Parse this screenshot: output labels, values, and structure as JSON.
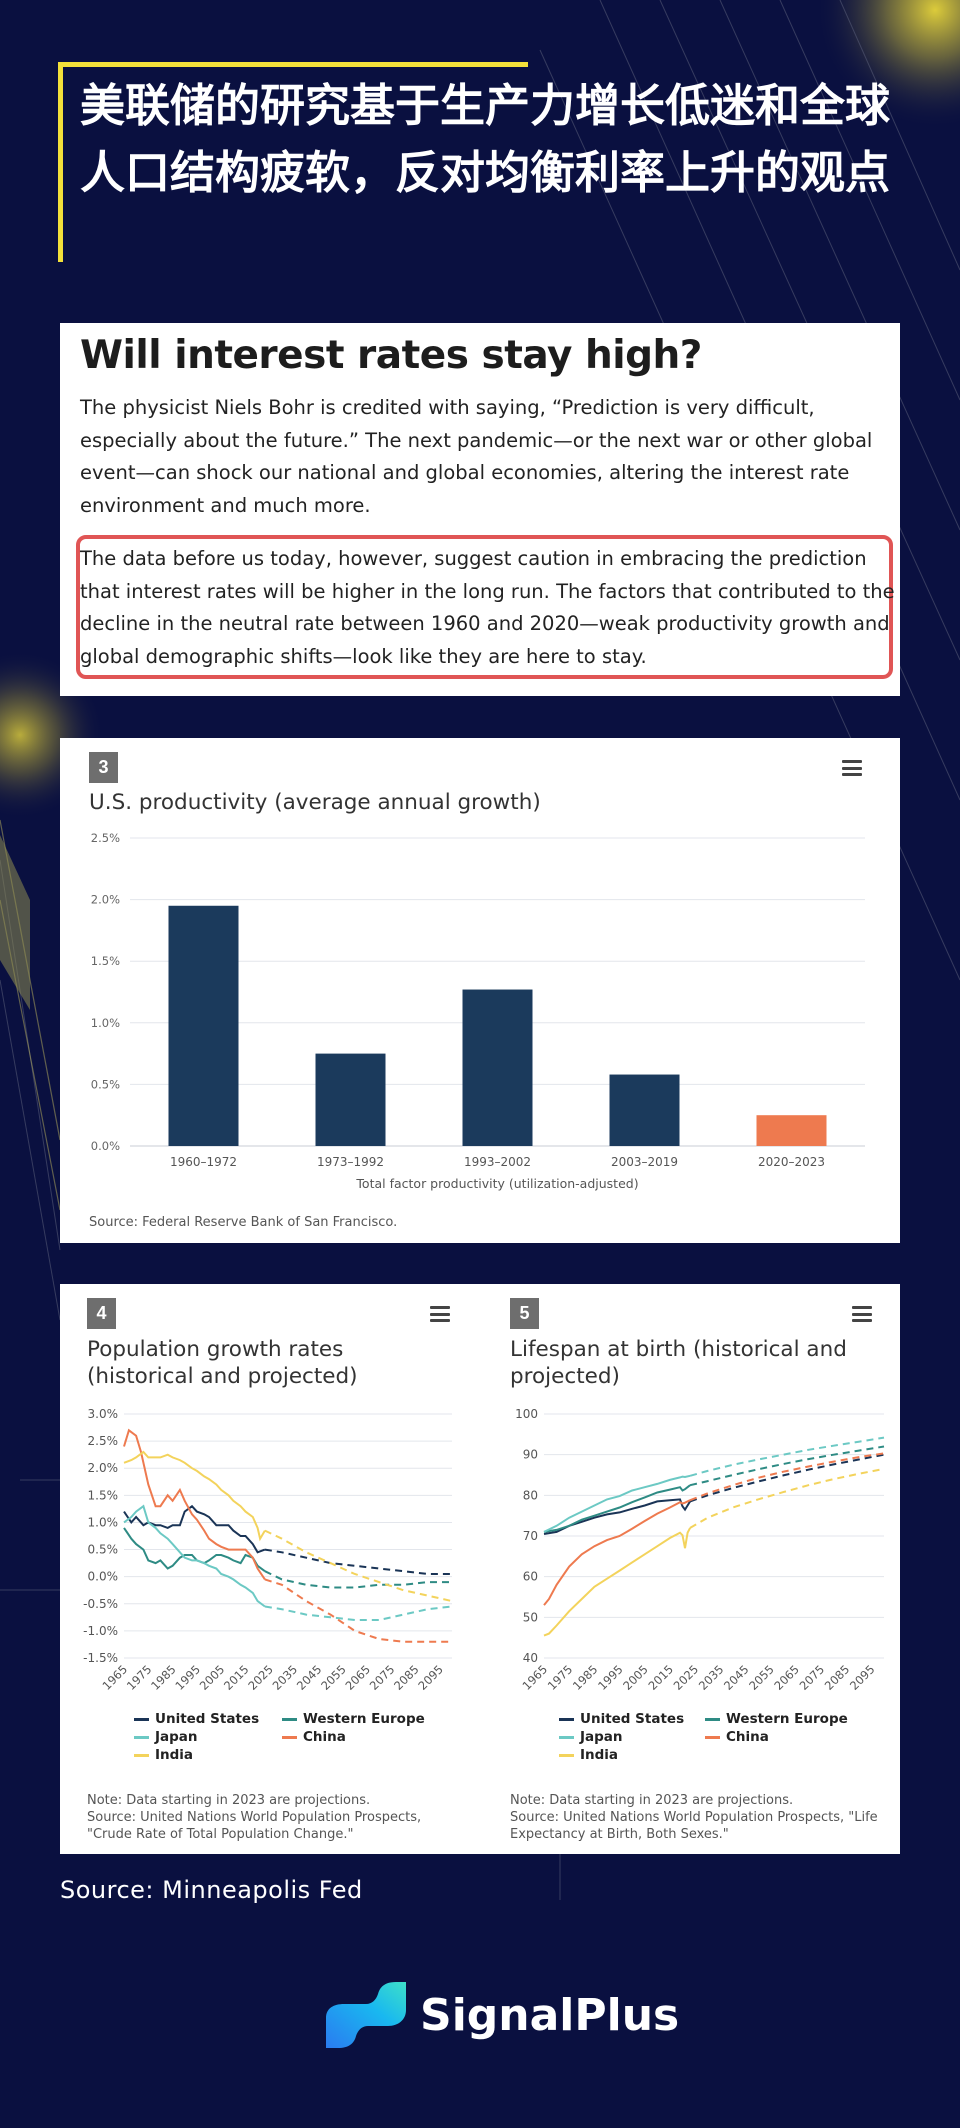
{
  "headline": "美联储的研究基于生产力增长低迷和全球人口结构疲软，反对均衡利率上升的观点",
  "article": {
    "title": "Will interest rates stay high?",
    "paragraph1": "The physicist Niels Bohr is credited with saying, “Prediction is very difficult, especially about the future.” The next pandemic—or the next war or other global event—can shock our national and global economies, altering the interest rate environment and much more.",
    "paragraph2": "The data before us today, however, suggest caution in embracing the prediction that interest rates will be higher in the long run. The factors that contributed to the decline in the neutral rate between 1960 and 2020—weak productivity growth and global demographic shifts—look like they are here to stay."
  },
  "colors": {
    "background": "#0a1040",
    "accent_yellow": "#f3e03a",
    "highlight_red": "#e05555",
    "bar_navy": "#1b3a5c",
    "bar_orange": "#ee7a4f",
    "us": "#1a3456",
    "western_europe": "#2e8b84",
    "japan": "#6cc9c4",
    "china": "#ee7a4f",
    "india": "#f3d35c"
  },
  "chart_data": [
    {
      "badge": "3",
      "type": "bar",
      "title": "U.S. productivity (average annual growth)",
      "categories": [
        "1960–1972",
        "1973–1992",
        "1993–2002",
        "2003–2019",
        "2020–2023"
      ],
      "values": [
        1.95,
        0.75,
        1.27,
        0.58,
        0.25
      ],
      "bar_colors": [
        "#1b3a5c",
        "#1b3a5c",
        "#1b3a5c",
        "#1b3a5c",
        "#ee7a4f"
      ],
      "xlabel": "Total factor productivity (utilization-adjusted)",
      "ylabel": "",
      "ylim": [
        0,
        2.5
      ],
      "yticks": [
        "0.0%",
        "0.5%",
        "1.0%",
        "1.5%",
        "2.0%",
        "2.5%"
      ],
      "source": "Source: Federal Reserve Bank of San Francisco."
    },
    {
      "badge": "4",
      "type": "line",
      "title": "Population growth rates (historical and projected)",
      "ylim": [
        -1.5,
        3.0
      ],
      "yticks": [
        "3.0%",
        "2.5%",
        "2.0%",
        "1.5%",
        "1.0%",
        "0.5%",
        "0.0%",
        "-0.5%",
        "-1.0%",
        "-1.5%"
      ],
      "xticks": [
        "1965",
        "1975",
        "1985",
        "1995",
        "2005",
        "2015",
        "2025",
        "2035",
        "2045",
        "2055",
        "2065",
        "2075",
        "2085",
        "2095"
      ],
      "projection_start": 2023,
      "series": [
        {
          "name": "United States",
          "color": "#1a3456",
          "x": [
            1965,
            1968,
            1970,
            1973,
            1975,
            1978,
            1980,
            1983,
            1985,
            1988,
            1990,
            1993,
            1995,
            1998,
            2000,
            2003,
            2005,
            2008,
            2010,
            2013,
            2015,
            2018,
            2020,
            2023,
            2030,
            2040,
            2050,
            2060,
            2070,
            2080,
            2090,
            2100
          ],
          "y": [
            1.2,
            1.0,
            1.1,
            0.95,
            1.0,
            0.95,
            0.95,
            0.9,
            0.95,
            0.95,
            1.2,
            1.3,
            1.2,
            1.15,
            1.1,
            0.95,
            0.95,
            0.95,
            0.85,
            0.75,
            0.75,
            0.6,
            0.45,
            0.5,
            0.45,
            0.35,
            0.25,
            0.2,
            0.15,
            0.1,
            0.05,
            0.05
          ]
        },
        {
          "name": "Western Europe",
          "color": "#2e8b84",
          "x": [
            1965,
            1968,
            1970,
            1973,
            1975,
            1978,
            1980,
            1983,
            1985,
            1988,
            1990,
            1993,
            1995,
            1998,
            2000,
            2003,
            2005,
            2008,
            2010,
            2013,
            2015,
            2018,
            2020,
            2023,
            2030,
            2040,
            2050,
            2060,
            2070,
            2080,
            2090,
            2100
          ],
          "y": [
            0.9,
            0.7,
            0.6,
            0.5,
            0.3,
            0.25,
            0.3,
            0.15,
            0.2,
            0.35,
            0.4,
            0.4,
            0.3,
            0.25,
            0.3,
            0.4,
            0.4,
            0.35,
            0.3,
            0.25,
            0.4,
            0.35,
            0.2,
            0.1,
            -0.05,
            -0.15,
            -0.2,
            -0.2,
            -0.15,
            -0.15,
            -0.1,
            -0.1
          ]
        },
        {
          "name": "Japan",
          "color": "#6cc9c4",
          "x": [
            1965,
            1968,
            1970,
            1973,
            1975,
            1978,
            1980,
            1983,
            1985,
            1988,
            1990,
            1993,
            1995,
            1998,
            2000,
            2003,
            2005,
            2008,
            2010,
            2013,
            2015,
            2018,
            2020,
            2023,
            2030,
            2040,
            2050,
            2060,
            2070,
            2080,
            2090,
            2100
          ],
          "y": [
            1.0,
            1.1,
            1.2,
            1.3,
            1.0,
            0.9,
            0.8,
            0.7,
            0.6,
            0.45,
            0.35,
            0.3,
            0.3,
            0.25,
            0.2,
            0.15,
            0.05,
            0.0,
            -0.05,
            -0.15,
            -0.2,
            -0.3,
            -0.45,
            -0.55,
            -0.6,
            -0.7,
            -0.75,
            -0.8,
            -0.8,
            -0.7,
            -0.6,
            -0.55
          ]
        },
        {
          "name": "China",
          "color": "#ee7a4f",
          "x": [
            1965,
            1967,
            1970,
            1972,
            1975,
            1978,
            1980,
            1983,
            1985,
            1988,
            1990,
            1993,
            1995,
            1998,
            2000,
            2003,
            2005,
            2008,
            2010,
            2013,
            2015,
            2018,
            2020,
            2023,
            2030,
            2040,
            2050,
            2060,
            2070,
            2080,
            2090,
            2100
          ],
          "y": [
            2.4,
            2.7,
            2.6,
            2.3,
            1.7,
            1.3,
            1.3,
            1.5,
            1.4,
            1.6,
            1.4,
            1.15,
            1.05,
            0.85,
            0.7,
            0.6,
            0.55,
            0.5,
            0.5,
            0.5,
            0.5,
            0.35,
            0.15,
            -0.05,
            -0.15,
            -0.45,
            -0.7,
            -1.0,
            -1.15,
            -1.2,
            -1.2,
            -1.2
          ]
        },
        {
          "name": "India",
          "color": "#f3d35c",
          "x": [
            1965,
            1968,
            1970,
            1973,
            1975,
            1978,
            1980,
            1983,
            1985,
            1988,
            1990,
            1993,
            1995,
            1998,
            2000,
            2003,
            2005,
            2008,
            2010,
            2013,
            2015,
            2018,
            2020,
            2021,
            2023,
            2030,
            2040,
            2050,
            2060,
            2070,
            2080,
            2090,
            2100
          ],
          "y": [
            2.1,
            2.15,
            2.2,
            2.3,
            2.2,
            2.2,
            2.2,
            2.25,
            2.2,
            2.15,
            2.1,
            2.0,
            1.95,
            1.85,
            1.8,
            1.7,
            1.6,
            1.5,
            1.4,
            1.3,
            1.2,
            1.1,
            0.9,
            0.7,
            0.85,
            0.7,
            0.45,
            0.25,
            0.05,
            -0.1,
            -0.25,
            -0.35,
            -0.45
          ]
        }
      ],
      "note": "Note: Data starting in 2023 are projections.",
      "source": "Source: United Nations World Population Prospects, \"Crude Rate of Total Population Change.\""
    },
    {
      "badge": "5",
      "type": "line",
      "title": "Lifespan at birth (historical and projected)",
      "ylim": [
        40,
        100
      ],
      "yticks": [
        "100",
        "90",
        "80",
        "70",
        "60",
        "50",
        "40"
      ],
      "xticks": [
        "1965",
        "1975",
        "1985",
        "1995",
        "2005",
        "2015",
        "2025",
        "2035",
        "2045",
        "2055",
        "2065",
        "2075",
        "2085",
        "2095"
      ],
      "projection_start": 2023,
      "series": [
        {
          "name": "United States",
          "color": "#1a3456",
          "x": [
            1965,
            1970,
            1975,
            1980,
            1985,
            1990,
            1995,
            2000,
            2005,
            2010,
            2015,
            2019,
            2020,
            2021,
            2023,
            2030,
            2040,
            2050,
            2060,
            2070,
            2080,
            2090,
            2100
          ],
          "y": [
            70.5,
            71,
            72.5,
            73.5,
            74.5,
            75.3,
            75.8,
            76.7,
            77.5,
            78.5,
            78.8,
            79,
            77.3,
            76.5,
            78.5,
            80,
            81.8,
            83.4,
            84.9,
            86.3,
            87.6,
            88.8,
            90
          ]
        },
        {
          "name": "Western Europe",
          "color": "#2e8b84",
          "x": [
            1965,
            1970,
            1975,
            1980,
            1985,
            1990,
            1995,
            2000,
            2005,
            2010,
            2015,
            2019,
            2020,
            2021,
            2023,
            2030,
            2040,
            2050,
            2060,
            2070,
            2080,
            2090,
            2100
          ],
          "y": [
            71,
            71.5,
            72.5,
            74,
            75,
            76,
            77,
            78.3,
            79.5,
            80.7,
            81.4,
            82,
            81.2,
            81.5,
            82.5,
            83.5,
            85,
            86.4,
            87.7,
            88.9,
            90,
            91,
            92
          ]
        },
        {
          "name": "Japan",
          "color": "#6cc9c4",
          "x": [
            1965,
            1970,
            1975,
            1980,
            1985,
            1990,
            1995,
            2000,
            2005,
            2010,
            2015,
            2019,
            2020,
            2021,
            2023,
            2030,
            2040,
            2050,
            2060,
            2070,
            2080,
            2090,
            2100
          ],
          "y": [
            71,
            72.5,
            74.5,
            76,
            77.5,
            79,
            79.8,
            81.2,
            82,
            82.8,
            83.8,
            84.4,
            84.6,
            84.5,
            84.8,
            86,
            87.5,
            88.8,
            90,
            91.2,
            92.2,
            93.2,
            94.2
          ]
        },
        {
          "name": "China",
          "color": "#ee7a4f",
          "x": [
            1965,
            1967,
            1970,
            1975,
            1980,
            1985,
            1990,
            1995,
            2000,
            2005,
            2010,
            2015,
            2019,
            2020,
            2021,
            2023,
            2030,
            2040,
            2050,
            2060,
            2070,
            2080,
            2090,
            2100
          ],
          "y": [
            53,
            54.5,
            58,
            62.5,
            65.5,
            67.5,
            69,
            70,
            71.8,
            73.7,
            75.5,
            77,
            78.3,
            78,
            78.2,
            78.8,
            80.5,
            82.5,
            84.3,
            85.8,
            87.1,
            88.3,
            89.4,
            90.3
          ]
        },
        {
          "name": "India",
          "color": "#f3d35c",
          "x": [
            1965,
            1967,
            1970,
            1975,
            1980,
            1985,
            1990,
            1995,
            2000,
            2005,
            2010,
            2015,
            2019,
            2020,
            2021,
            2022,
            2023,
            2030,
            2040,
            2050,
            2060,
            2070,
            2080,
            2090,
            2100
          ],
          "y": [
            45.5,
            46,
            48,
            51.5,
            54.5,
            57.5,
            59.5,
            61.5,
            63.5,
            65.5,
            67.5,
            69.5,
            70.8,
            70.2,
            67,
            70.8,
            72,
            74.5,
            77,
            79,
            80.8,
            82.5,
            84,
            85.3,
            86.5
          ]
        }
      ],
      "note": "Note: Data starting in 2023 are projections.",
      "source": "Source: United Nations World Population Prospects, \"Life Expectancy at Birth, Both Sexes.\""
    }
  ],
  "legend": [
    "United States",
    "Western Europe",
    "Japan",
    "China",
    "India"
  ],
  "footer": {
    "source": "Source: Minneapolis Fed",
    "brand": "SignalPlus"
  }
}
